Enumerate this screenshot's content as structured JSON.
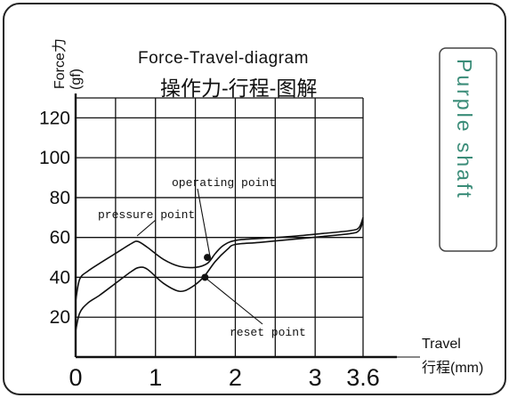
{
  "chart_data": {
    "type": "line",
    "title": "Force-Travel-diagram",
    "subtitle": "操作力-行程-图解",
    "ylabel_line1": "Force力",
    "ylabel_line2": "(gf)",
    "xlabel_line1": "Travel",
    "xlabel_line2": "行程(mm)",
    "xlim": [
      0,
      3.6
    ],
    "ylim": [
      0,
      130
    ],
    "x_ticks": [
      0,
      1,
      2,
      3,
      3.6
    ],
    "x_tick_labels": [
      "0",
      "1",
      "2",
      "3",
      "3.6"
    ],
    "y_ticks": [
      20,
      40,
      60,
      80,
      100,
      120
    ],
    "y_tick_labels": [
      "20",
      "40",
      "60",
      "80",
      "100",
      "120"
    ],
    "grid": true,
    "series": [
      {
        "x": [
          0,
          0.05,
          0.15,
          0.3,
          0.5,
          0.7,
          0.78,
          0.9,
          1.1,
          1.3,
          1.5,
          1.65,
          1.75,
          1.85,
          2.0,
          2.3,
          2.7,
          3.1,
          3.45,
          3.55,
          3.6
        ],
        "y": [
          28,
          39,
          43,
          47,
          52,
          57,
          58,
          55,
          49,
          45.5,
          45,
          47,
          52,
          56,
          58.5,
          59.5,
          60.5,
          62,
          63.5,
          65,
          70
        ]
      },
      {
        "x": [
          0,
          0.05,
          0.15,
          0.3,
          0.5,
          0.7,
          0.8,
          0.9,
          1.1,
          1.3,
          1.45,
          1.6,
          1.75,
          1.9,
          2.0,
          2.3,
          2.7,
          3.1,
          3.45,
          3.55,
          3.6
        ],
        "y": [
          13,
          22,
          27,
          31,
          37,
          43,
          45,
          44,
          37,
          33,
          35,
          40,
          48,
          54,
          56.5,
          57.5,
          59,
          60.5,
          62,
          63.5,
          68
        ]
      }
    ],
    "points": [
      {
        "label": "operating point",
        "x": 1.65,
        "y": 50
      },
      {
        "label": "reset point",
        "x": 1.62,
        "y": 40
      }
    ],
    "annotations": {
      "pressure_point": "pressure point"
    }
  },
  "side_label": "Purple shaft"
}
